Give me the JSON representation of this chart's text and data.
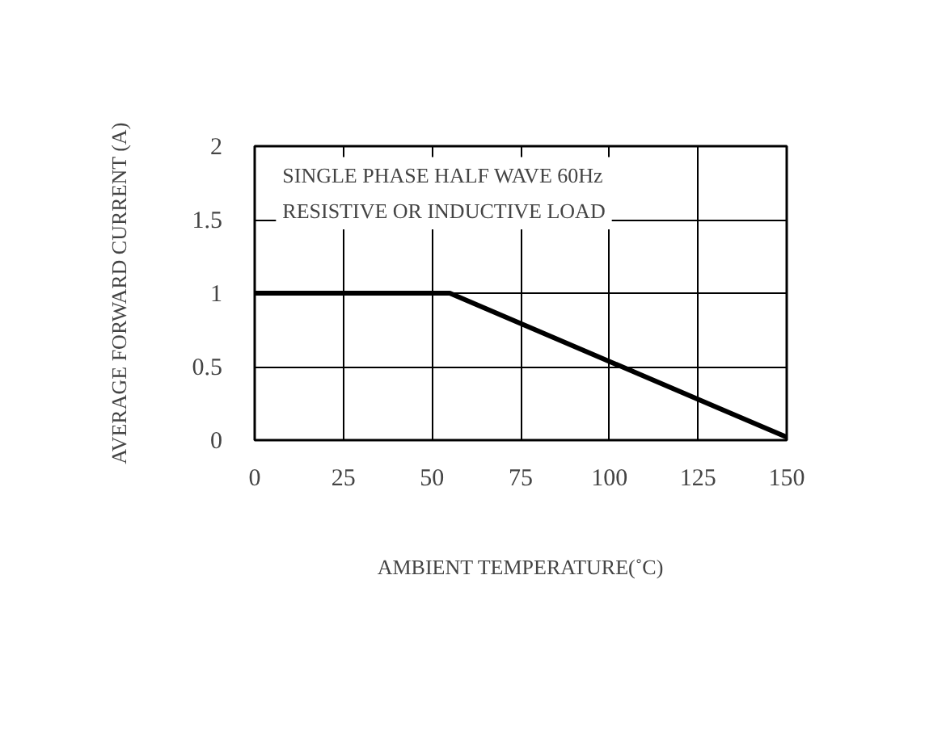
{
  "chart_data": {
    "type": "line",
    "xlabel": "AMBIENT TEMPERATURE(˚C)",
    "ylabel": "AVERAGE FORWARD CURRENT (A)",
    "x": [
      0,
      55,
      150
    ],
    "series": [
      {
        "color": "#000000",
        "values": [
          1,
          1,
          0.02
        ]
      }
    ],
    "xlim": [
      0,
      150
    ],
    "xticks": [
      0,
      25,
      50,
      75,
      100,
      125,
      150
    ],
    "ylim": [
      0,
      2
    ],
    "yticks": [
      0,
      0.5,
      1,
      1.5,
      2
    ],
    "grid": true,
    "line_style": "solid",
    "marker": "none",
    "annotations": [
      "SINGLE PHASE HALF WAVE 60Hz",
      "RESISTIVE OR INDUCTIVE LOAD"
    ]
  }
}
